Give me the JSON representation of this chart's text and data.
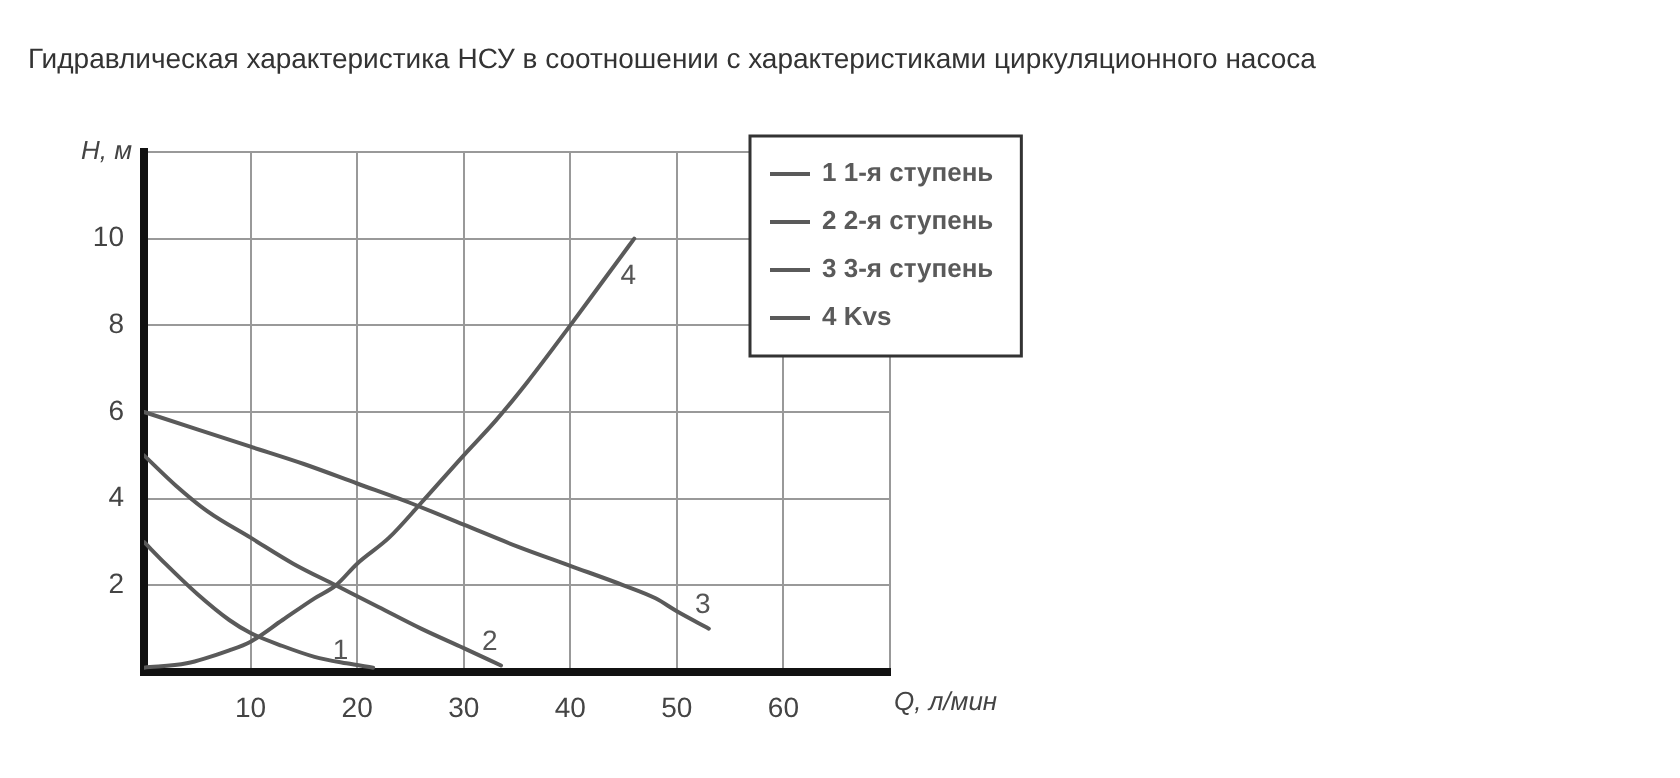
{
  "chart_data": {
    "type": "line",
    "title": "Гидравлическая характеристика НСУ в соотношении с характеристиками циркуляционного насоса",
    "xlabel": "Q, л/мин",
    "ylabel": "H, м",
    "xlim": [
      0,
      70
    ],
    "xticks": [
      10,
      20,
      30,
      40,
      50,
      60,
      {
        "value": 70,
        "label": null
      }
    ],
    "ylim": [
      0,
      12
    ],
    "yticks": [
      2,
      4,
      6,
      8,
      10,
      {
        "value": 12,
        "label": null
      }
    ],
    "grid": true,
    "legend": "top right",
    "marker": "none",
    "line_style": "solid",
    "series": [
      {
        "name": "1 1-я ступень",
        "color": "#5a5a5a",
        "x": [
          0,
          2,
          5,
          8,
          10,
          13,
          16,
          19,
          21.5
        ],
        "values": [
          3,
          2.5,
          1.8,
          1.2,
          0.9,
          0.6,
          0.35,
          0.2,
          0.1
        ]
      },
      {
        "name": "2 2-я ступень",
        "color": "#5a5a5a",
        "x": [
          0,
          3,
          6,
          10,
          14,
          18,
          22,
          26,
          30,
          33.5
        ],
        "values": [
          5,
          4.3,
          3.7,
          3.1,
          2.5,
          2.0,
          1.5,
          1.0,
          0.55,
          0.15
        ]
      },
      {
        "name": "3 3-я ступень",
        "color": "#5a5a5a",
        "x": [
          0,
          5,
          10,
          15,
          20,
          25,
          30,
          35,
          40,
          45,
          48,
          50,
          53
        ],
        "values": [
          6,
          5.6,
          5.2,
          4.8,
          4.35,
          3.9,
          3.4,
          2.9,
          2.45,
          2.0,
          1.7,
          1.4,
          1.0
        ]
      },
      {
        "name": "4 Kvs",
        "color": "#5a5a5a",
        "x": [
          0,
          4,
          8,
          10,
          13,
          16,
          18,
          20,
          23,
          26,
          30,
          33,
          36,
          40,
          43,
          46
        ],
        "values": [
          0.1,
          0.2,
          0.5,
          0.7,
          1.2,
          1.7,
          2.0,
          2.5,
          3.1,
          3.9,
          5.0,
          5.8,
          6.7,
          8.0,
          9.0,
          10.0
        ]
      }
    ],
    "annotations": [
      {
        "text": "1",
        "x": 16,
        "y": 0.35
      },
      {
        "text": "2",
        "x": 30,
        "y": 0.55
      },
      {
        "text": "3",
        "x": 50,
        "y": 1.4
      },
      {
        "text": "4",
        "x": 43,
        "y": 9.0
      }
    ]
  }
}
